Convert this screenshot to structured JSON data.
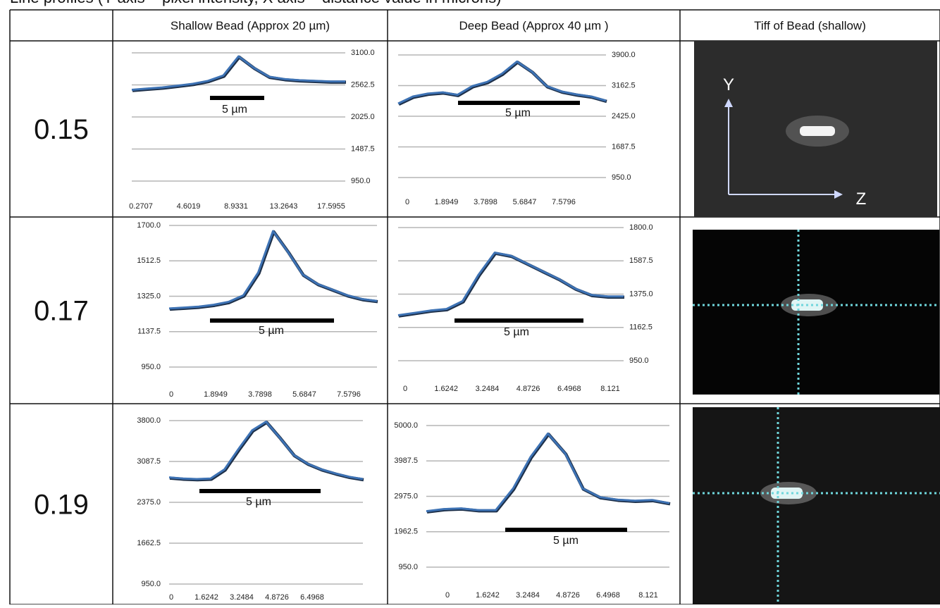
{
  "title": "Line profiles (Y axis – pixel intensity, X axis – distance value in microns)",
  "table": {
    "header": [
      "Shallow Bead (Approx 20 µm)",
      "Deep Bead (Approx 40 µm )",
      "Tiff of Bead (shallow)"
    ],
    "rows": [
      {
        "label": "0.15",
        "shallow": {
          "type": "line",
          "color": "#3d72b4",
          "y_label_side": "right",
          "ylim": [
            950,
            3100
          ],
          "yticks": [
            {
              "value": 950,
              "label": "950.0"
            },
            1487.5,
            {
              "value": 2025,
              "label": "2025.0"
            },
            2562.5,
            {
              "value": 3100,
              "label": "3100.0"
            }
          ],
          "xtick_labels": [
            0.2707,
            4.6019,
            8.9331,
            13.2643,
            17.5955
          ],
          "values": [
            2480,
            2500,
            2520,
            2550,
            2580,
            2630,
            2720,
            3040,
            2850,
            2700,
            2660,
            2640,
            2630,
            2620,
            2620
          ],
          "scale_bar": "5 µm"
        },
        "deep": {
          "type": "line",
          "color": "#3d72b4",
          "y_label_side": "right",
          "ylim": [
            950,
            3900
          ],
          "yticks": [
            {
              "value": 950,
              "label": "950.0"
            },
            1687.5,
            {
              "value": 2425,
              "label": "2425.0"
            },
            3162.5,
            {
              "value": 3900,
              "label": "3900.0"
            }
          ],
          "xtick_labels": [
            0,
            1.8949,
            3.7898,
            5.6847,
            7.5796
          ],
          "values": [
            2730,
            2900,
            2970,
            3000,
            2940,
            3150,
            3250,
            3450,
            3740,
            3500,
            3150,
            3020,
            2950,
            2900,
            2800
          ],
          "scale_bar": "5 µm"
        },
        "image": {
          "axis_labels": [
            "Y",
            "Z"
          ]
        }
      },
      {
        "label": "0.17",
        "shallow": {
          "type": "line",
          "color": "#3d72b4",
          "y_label_side": "left",
          "ylim": [
            950,
            1700
          ],
          "yticks": [
            {
              "value": 950,
              "label": "950.0"
            },
            1137.5,
            {
              "value": 1325,
              "label": "1325.0"
            },
            1512.5,
            {
              "value": 1700,
              "label": "1700.0"
            }
          ],
          "xtick_labels": [
            0,
            1.8949,
            3.7898,
            5.6847,
            7.5796
          ],
          "values": [
            1260,
            1265,
            1270,
            1280,
            1295,
            1330,
            1450,
            1670,
            1560,
            1440,
            1390,
            1360,
            1330,
            1310,
            1300
          ],
          "scale_bar": "5 µm"
        },
        "deep": {
          "type": "line",
          "color": "#3d72b4",
          "y_label_side": "right",
          "ylim": [
            950,
            1800
          ],
          "yticks": [
            {
              "value": 950,
              "label": "950.0"
            },
            1162.5,
            {
              "value": 1375,
              "label": "1375.0"
            },
            1587.5,
            {
              "value": 1800,
              "label": "1800.0"
            }
          ],
          "xtick_labels": [
            0,
            1.6242,
            3.2484,
            4.8726,
            6.4968,
            8.121
          ],
          "values": [
            1240,
            1255,
            1270,
            1280,
            1330,
            1500,
            1640,
            1620,
            1570,
            1520,
            1470,
            1410,
            1370,
            1360,
            1360
          ],
          "scale_bar": "5 µm"
        }
      },
      {
        "label": "0.19",
        "shallow": {
          "type": "line",
          "color": "#3d72b4",
          "y_label_side": "left",
          "ylim": [
            950,
            3800
          ],
          "yticks": [
            {
              "value": 950,
              "label": "950.0"
            },
            1662.5,
            {
              "value": 2375,
              "label": "2375.0"
            },
            3087.5,
            {
              "value": 3800,
              "label": "3800.0"
            }
          ],
          "xtick_labels": [
            0,
            1.6242,
            3.2484,
            4.8726,
            6.4968
          ],
          "values": [
            2810,
            2790,
            2780,
            2790,
            2950,
            3300,
            3630,
            3780,
            3500,
            3200,
            3050,
            2950,
            2880,
            2820,
            2780
          ],
          "scale_bar": "5 µm"
        },
        "deep": {
          "type": "line",
          "color": "#3d72b4",
          "y_label_side": "left",
          "ylim": [
            950,
            5000
          ],
          "yticks": [
            {
              "value": 950,
              "label": "950.0"
            },
            1962.5,
            {
              "value": 2975,
              "label": "2975.0"
            },
            3987.5,
            {
              "value": 5000,
              "label": "5000.0"
            }
          ],
          "xtick_labels": [
            0,
            1.6242,
            3.2484,
            4.8726,
            6.4968,
            8.121
          ],
          "values": [
            2550,
            2610,
            2630,
            2580,
            2580,
            3200,
            4100,
            4770,
            4200,
            3200,
            2950,
            2880,
            2850,
            2870,
            2780
          ],
          "scale_bar": "5 µm"
        }
      }
    ]
  }
}
